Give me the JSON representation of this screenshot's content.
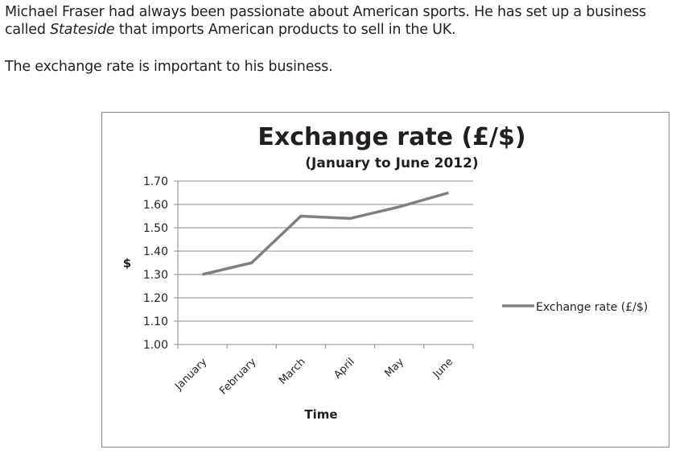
{
  "intro": {
    "sentence1": "Michael Fraser had always been passionate about American sports. He has set up a business called ",
    "business_name": "Stateside",
    "sentence1_end": " that imports American products to sell in the UK.",
    "sentence2": "The exchange rate is important to his business."
  },
  "chart_data": {
    "type": "line",
    "title": "Exchange rate (£/$)",
    "subtitle": "(January to June 2012)",
    "xlabel": "Time",
    "ylabel": "$",
    "categories": [
      "January",
      "February",
      "March",
      "April",
      "May",
      "June"
    ],
    "series": [
      {
        "name": "Exchange rate (£/$)",
        "values": [
          1.3,
          1.35,
          1.55,
          1.54,
          1.59,
          1.65
        ],
        "color": "#7f7f7f"
      }
    ],
    "ylim": [
      1.0,
      1.7
    ],
    "yticks": [
      "1.00",
      "1.10",
      "1.20",
      "1.30",
      "1.40",
      "1.50",
      "1.60",
      "1.70"
    ],
    "grid": true,
    "legend": "right"
  }
}
